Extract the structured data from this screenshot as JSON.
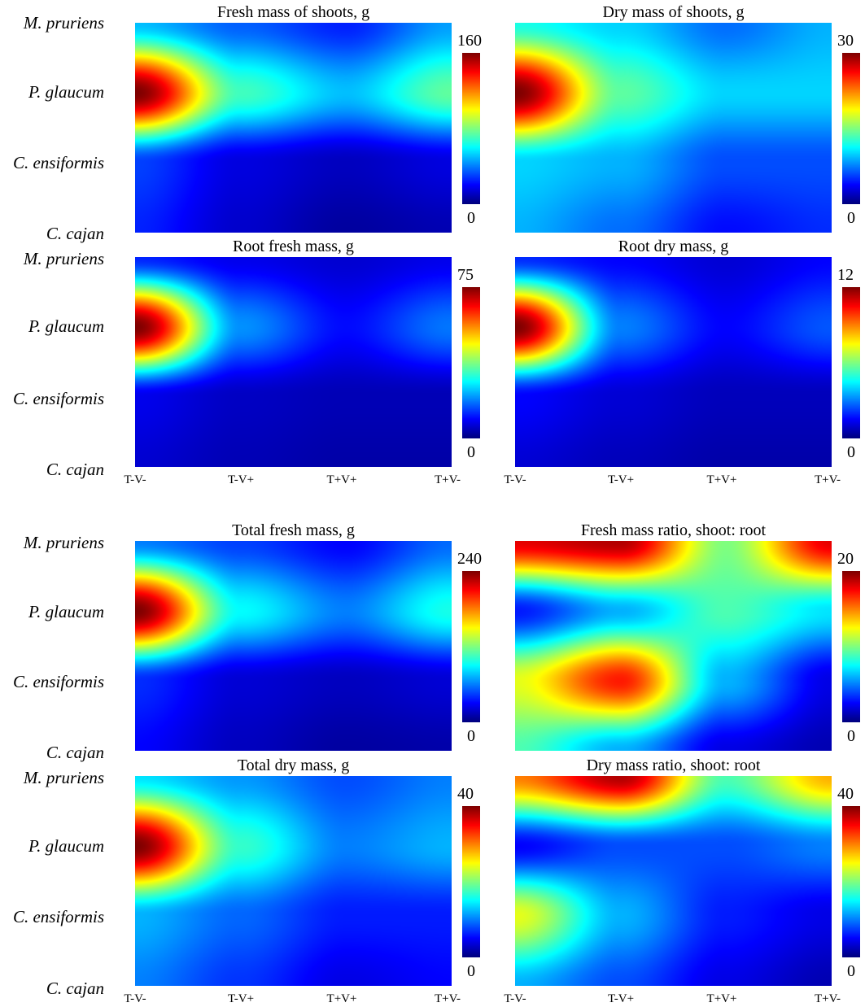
{
  "species": [
    "M. pruriens",
    "P. glaucum",
    "C. ensiformis",
    "C. cajan"
  ],
  "treatments": [
    "T-V-",
    "T-V+",
    "T+V+",
    "T+V-"
  ],
  "colormap": [
    "#00007f",
    "#0000ff",
    "#007fff",
    "#00ffff",
    "#7fff7f",
    "#ffff00",
    "#ff7f00",
    "#ff0000",
    "#7f0000"
  ],
  "chart_data": [
    {
      "type": "heatmap",
      "title": "Fresh mass of shoots, g",
      "x": [
        "T-V-",
        "T-V+",
        "T+V+",
        "T+V-"
      ],
      "y": [
        "M. pruriens",
        "P. glaucum",
        "C. ensiformis",
        "C. cajan"
      ],
      "zlim": [
        0,
        160
      ],
      "colorbar_ticks": [
        "160",
        "0"
      ],
      "values": [
        [
          50,
          35,
          25,
          45
        ],
        [
          160,
          70,
          50,
          75
        ],
        [
          30,
          15,
          10,
          15
        ],
        [
          25,
          12,
          5,
          8
        ]
      ]
    },
    {
      "type": "heatmap",
      "title": "Dry mass of shoots, g",
      "x": [
        "T-V-",
        "T-V+",
        "T+V+",
        "T+V-"
      ],
      "y": [
        "M. pruriens",
        "P. glaucum",
        "C. ensiformis",
        "C. cajan"
      ],
      "zlim": [
        0,
        30
      ],
      "colorbar_ticks": [
        "30",
        "0"
      ],
      "values": [
        [
          12,
          10,
          7,
          9
        ],
        [
          30,
          14,
          10,
          10
        ],
        [
          10,
          9,
          6,
          6
        ],
        [
          9,
          7,
          4,
          5
        ]
      ]
    },
    {
      "type": "heatmap",
      "title": "Root fresh mass, g",
      "x": [
        "T-V-",
        "T-V+",
        "T+V+",
        "T+V-"
      ],
      "y": [
        "M. pruriens",
        "P. glaucum",
        "C. ensiformis",
        "C. cajan"
      ],
      "zlim": [
        0,
        75
      ],
      "colorbar_ticks": [
        "75",
        "0"
      ],
      "values": [
        [
          12,
          8,
          6,
          8
        ],
        [
          75,
          20,
          10,
          18
        ],
        [
          8,
          5,
          4,
          4
        ],
        [
          6,
          4,
          3,
          3
        ]
      ]
    },
    {
      "type": "heatmap",
      "title": "Root dry mass, g",
      "x": [
        "T-V-",
        "T-V+",
        "T+V+",
        "T+V-"
      ],
      "y": [
        "M. pruriens",
        "P. glaucum",
        "C. ensiformis",
        "C. cajan"
      ],
      "zlim": [
        0,
        12
      ],
      "colorbar_ticks": [
        "12",
        "0"
      ],
      "values": [
        [
          2,
          1.5,
          1,
          1.5
        ],
        [
          12,
          3,
          1.5,
          2.5
        ],
        [
          1.5,
          1,
          0.7,
          0.7
        ],
        [
          1,
          0.7,
          0.5,
          0.5
        ]
      ]
    },
    {
      "type": "heatmap",
      "title": "Total fresh mass, g",
      "x": [
        "T-V-",
        "T-V+",
        "T+V+",
        "T+V-"
      ],
      "y": [
        "M. pruriens",
        "P. glaucum",
        "C. ensiformis",
        "C. cajan"
      ],
      "zlim": [
        0,
        240
      ],
      "colorbar_ticks": [
        "240",
        "0"
      ],
      "values": [
        [
          60,
          45,
          30,
          55
        ],
        [
          240,
          90,
          60,
          95
        ],
        [
          40,
          20,
          15,
          20
        ],
        [
          30,
          15,
          8,
          10
        ]
      ]
    },
    {
      "type": "heatmap",
      "title": "Fresh mass ratio, shoot: root",
      "x": [
        "T-V-",
        "T-V+",
        "T+V+",
        "T+V-"
      ],
      "y": [
        "M. pruriens",
        "P. glaucum",
        "C. ensiformis",
        "C. cajan"
      ],
      "zlim": [
        0,
        20
      ],
      "colorbar_ticks": [
        "20",
        "0"
      ],
      "values": [
        [
          18,
          19,
          10,
          18
        ],
        [
          3,
          6,
          9,
          7
        ],
        [
          12,
          17,
          6,
          2
        ],
        [
          9,
          6,
          2,
          1
        ]
      ]
    },
    {
      "type": "heatmap",
      "title": "Total dry mass, g",
      "x": [
        "T-V-",
        "T-V+",
        "T+V+",
        "T+V-"
      ],
      "y": [
        "M. pruriens",
        "P. glaucum",
        "C. ensiformis",
        "C. cajan"
      ],
      "zlim": [
        0,
        40
      ],
      "colorbar_ticks": [
        "40",
        "0"
      ],
      "values": [
        [
          14,
          11,
          8,
          10
        ],
        [
          40,
          17,
          10,
          12
        ],
        [
          12,
          9,
          6,
          6
        ],
        [
          10,
          7,
          4,
          5
        ]
      ]
    },
    {
      "type": "heatmap",
      "title": "Dry mass ratio, shoot: root",
      "x": [
        "T-V-",
        "T-V+",
        "T+V+",
        "T+V-"
      ],
      "y": [
        "M. pruriens",
        "P. glaucum",
        "C. ensiformis",
        "C. cajan"
      ],
      "zlim": [
        0,
        40
      ],
      "colorbar_ticks": [
        "40",
        "0"
      ],
      "values": [
        [
          30,
          38,
          18,
          28
        ],
        [
          5,
          8,
          8,
          10
        ],
        [
          24,
          12,
          6,
          4
        ],
        [
          12,
          8,
          4,
          2
        ]
      ]
    }
  ]
}
